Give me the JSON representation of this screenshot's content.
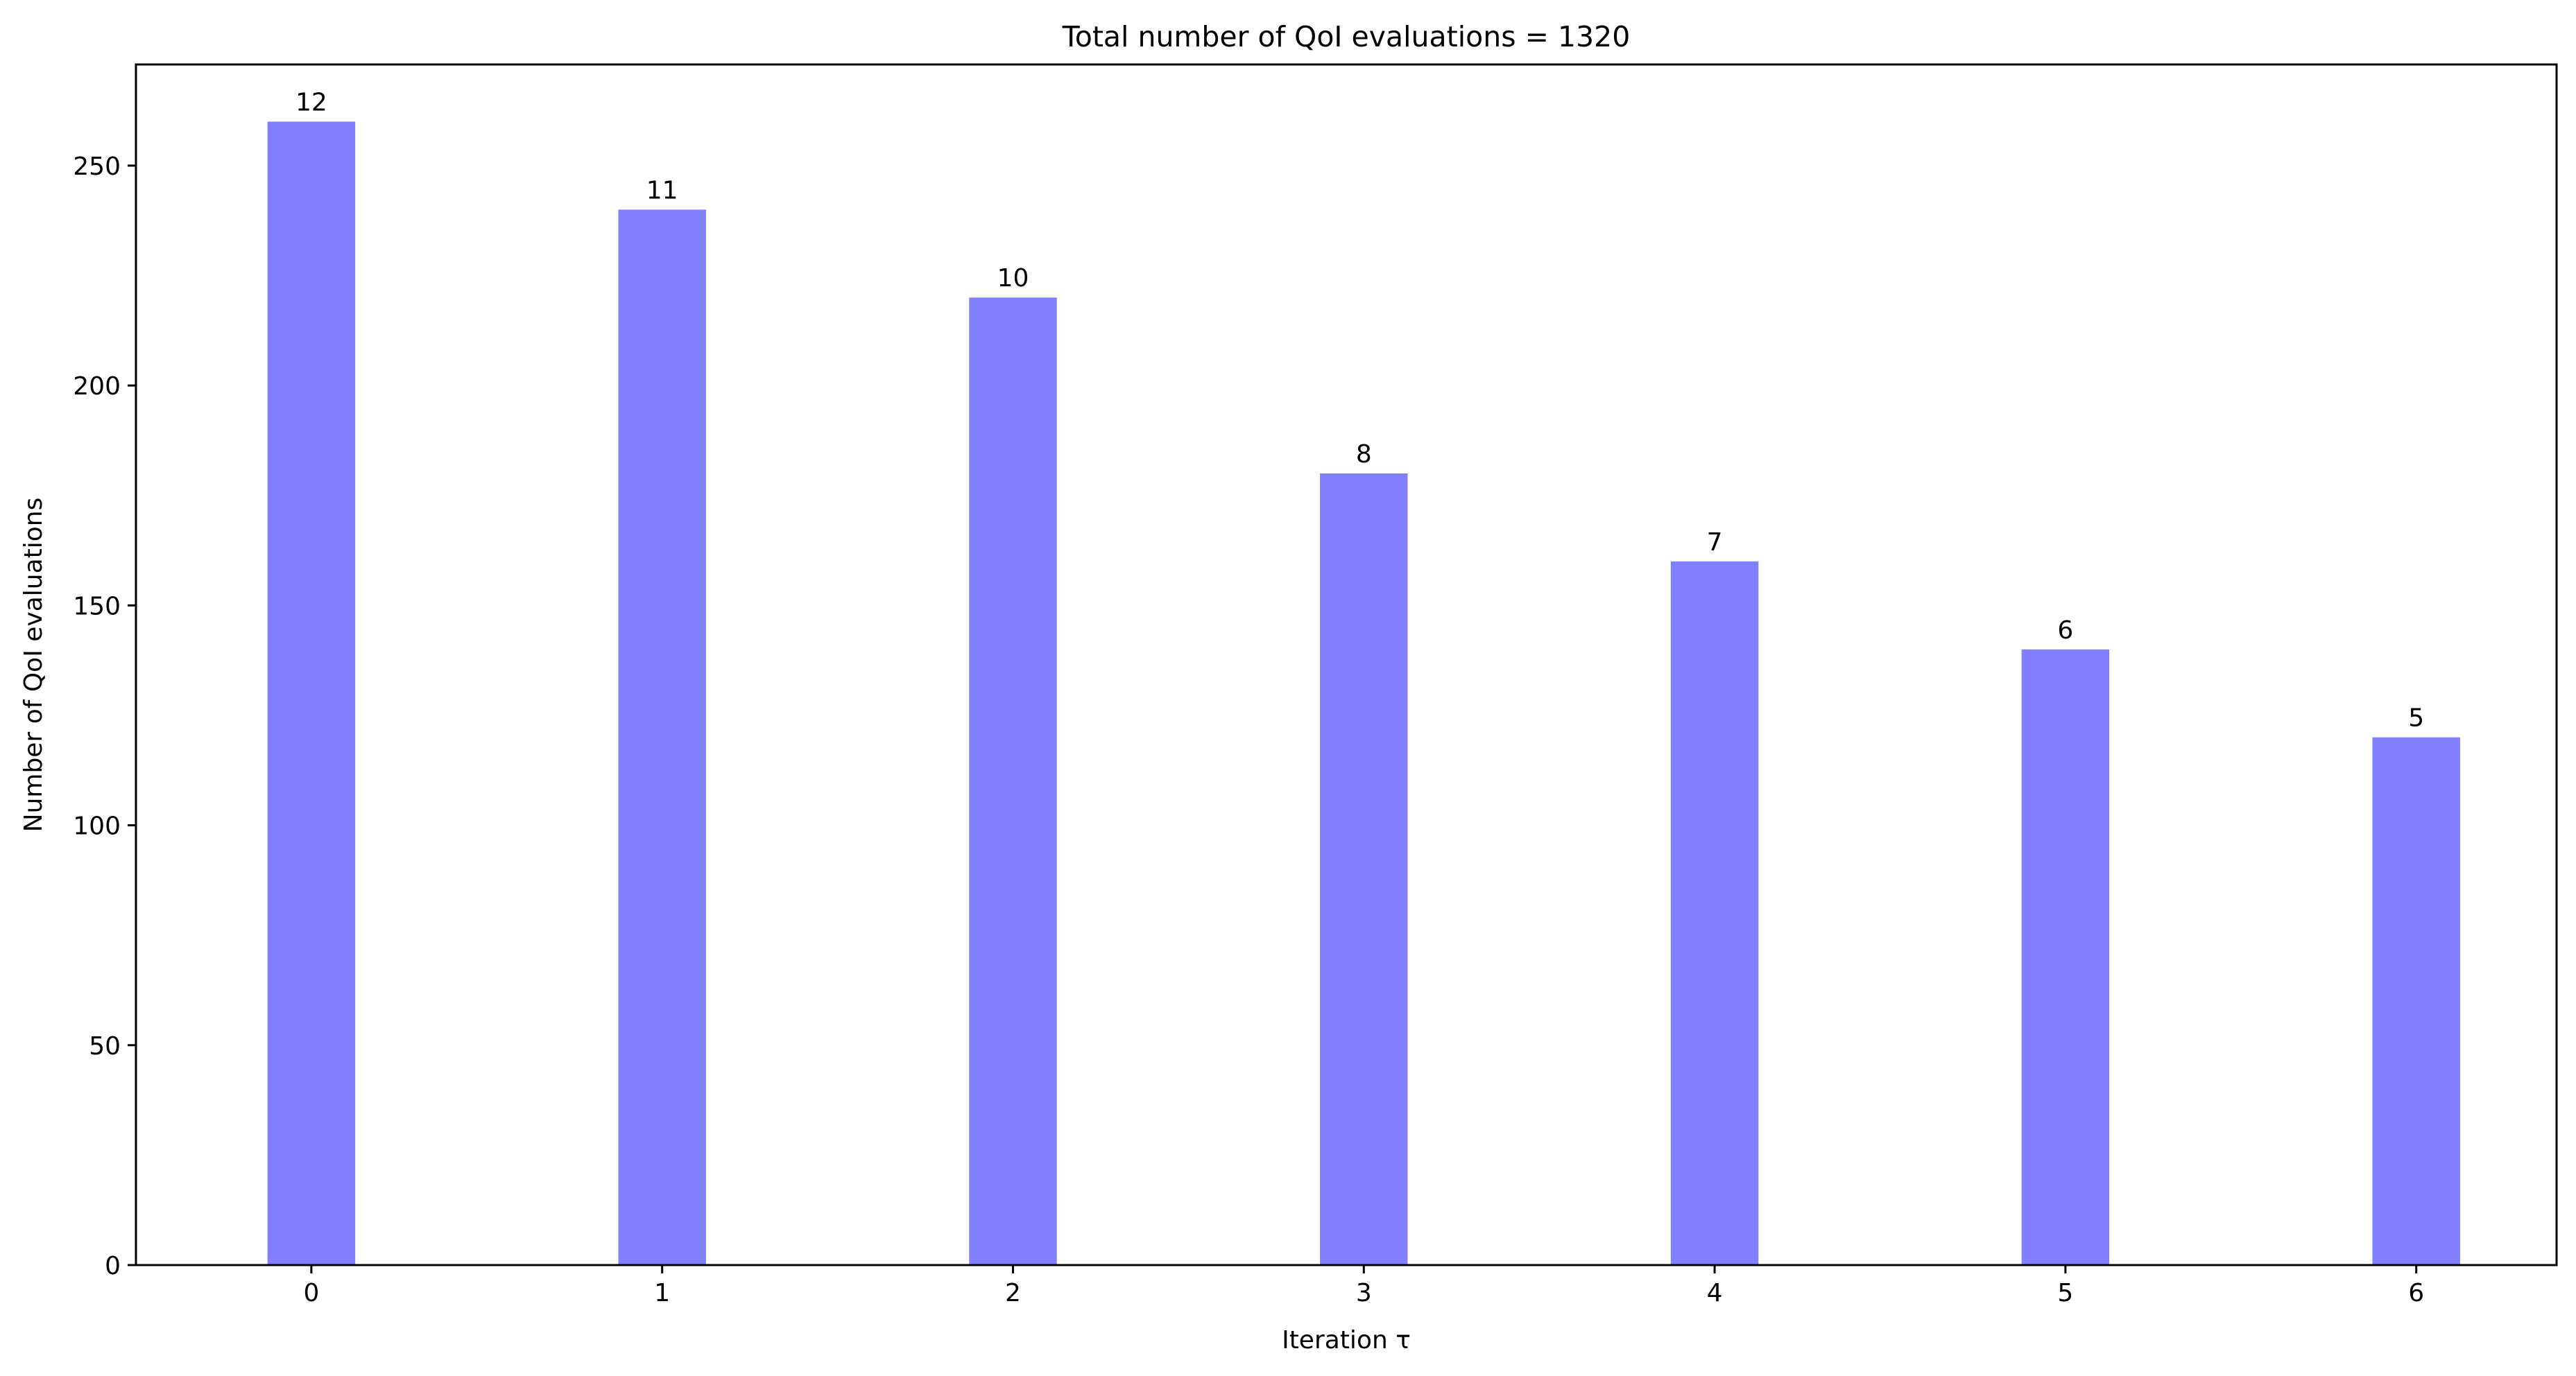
{
  "chart_data": {
    "type": "bar",
    "title": "Total number of QoI evaluations = 1320",
    "xlabel": "Iteration τ",
    "ylabel": "Number of QoI evaluations",
    "categories": [
      "0",
      "1",
      "2",
      "3",
      "4",
      "5",
      "6"
    ],
    "x": [
      0,
      1,
      2,
      3,
      4,
      5,
      6
    ],
    "values": [
      260,
      240,
      220,
      180,
      160,
      140,
      120
    ],
    "bar_labels": [
      "12",
      "11",
      "10",
      "8",
      "7",
      "6",
      "5"
    ],
    "ylim": [
      0,
      273
    ],
    "xlim": [
      -0.5,
      6.4
    ],
    "yticks": [
      0,
      50,
      100,
      150,
      200,
      250
    ],
    "grid": false,
    "legend": null,
    "bar_color": "#8080ff"
  }
}
